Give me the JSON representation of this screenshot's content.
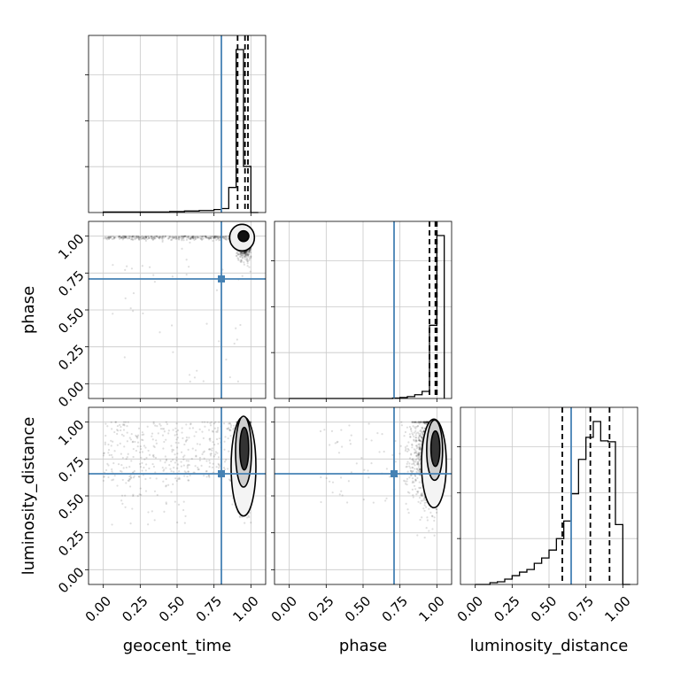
{
  "chart_data": {
    "type": "corner",
    "parameters": [
      "geocent_time",
      "phase",
      "luminosity_distance"
    ],
    "tick_labels": [
      "0.00",
      "0.25",
      "0.50",
      "0.75",
      "1.00"
    ],
    "axis_range": [
      -0.1,
      1.1
    ],
    "truths": {
      "geocent_time": 0.8,
      "phase": 0.71,
      "luminosity_distance": 0.65
    },
    "truth_color": "#4682b4",
    "grid": true,
    "histograms": {
      "geocent_time": {
        "bin_edges": [
          0.0,
          0.05,
          0.1,
          0.15,
          0.2,
          0.25,
          0.3,
          0.35,
          0.4,
          0.45,
          0.5,
          0.55,
          0.6,
          0.65,
          0.7,
          0.75,
          0.8,
          0.85,
          0.9,
          0.95,
          1.0,
          1.05
        ],
        "counts": [
          1,
          1,
          1,
          1,
          1,
          1,
          1,
          1,
          1,
          2,
          2,
          3,
          3,
          4,
          4,
          6,
          8,
          50,
          325,
          92,
          0
        ],
        "quantiles": [
          0.91,
          0.96,
          0.98
        ]
      },
      "phase": {
        "bin_edges": [
          0.0,
          0.05,
          0.1,
          0.15,
          0.2,
          0.25,
          0.3,
          0.35,
          0.4,
          0.45,
          0.5,
          0.55,
          0.6,
          0.65,
          0.7,
          0.75,
          0.8,
          0.85,
          0.9,
          0.95,
          1.0,
          1.05
        ],
        "counts": [
          0,
          0,
          0,
          0,
          0,
          0,
          0,
          0,
          0,
          0,
          0,
          0,
          0,
          0,
          1,
          2,
          4,
          8,
          15,
          155,
          345
        ],
        "quantiles": [
          0.95,
          0.99,
          1.0
        ]
      },
      "luminosity_distance": {
        "bin_edges": [
          0.0,
          0.05,
          0.1,
          0.15,
          0.2,
          0.25,
          0.3,
          0.35,
          0.4,
          0.45,
          0.5,
          0.55,
          0.6,
          0.65,
          0.7,
          0.75,
          0.8,
          0.85,
          0.9,
          0.95,
          1.0,
          1.05
        ],
        "counts": [
          0,
          0,
          2,
          3,
          6,
          10,
          14,
          17,
          24,
          30,
          39,
          52,
          72,
          103,
          142,
          167,
          185,
          163,
          162,
          68,
          0
        ],
        "quantiles": [
          0.59,
          0.78,
          0.91
        ]
      }
    },
    "scatter_2d": [
      {
        "x_param": "geocent_time",
        "y_param": "phase",
        "mode": "x≈0.95, y≈1.00",
        "contour_levels": 2
      },
      {
        "x_param": "geocent_time",
        "y_param": "luminosity_distance",
        "mode": "x≈0.95, y≈0.80",
        "contour_levels": 3
      },
      {
        "x_param": "phase",
        "y_param": "luminosity_distance",
        "mode": "x≈0.98, y≈0.80",
        "contour_levels": 3
      }
    ]
  }
}
